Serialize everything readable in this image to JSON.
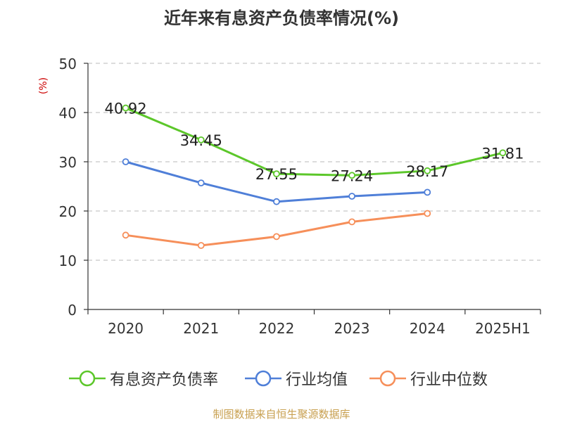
{
  "chart_data": {
    "type": "line",
    "title": "近年来有息资产负债率情况(%)",
    "unit_label": "(%)",
    "ylim": [
      0,
      50
    ],
    "yticks": [
      0,
      10,
      20,
      30,
      40,
      50
    ],
    "grid": true,
    "legend_position": "bottom",
    "categories": [
      "2020",
      "2021",
      "2022",
      "2023",
      "2024",
      "2025H1"
    ],
    "series": [
      {
        "name": "有息资产负债率",
        "color": "#5cc72a",
        "values": [
          40.92,
          34.45,
          27.55,
          27.24,
          28.17,
          31.81
        ],
        "labels": [
          "40.92",
          "34.45",
          "27.55",
          "27.24",
          "28.17",
          "31.81"
        ]
      },
      {
        "name": "行业均值",
        "color": "#4f7fd8",
        "values": [
          30.0,
          25.7,
          21.9,
          23.0,
          23.8,
          null
        ]
      },
      {
        "name": "行业中位数",
        "color": "#f68f5a",
        "values": [
          15.1,
          13.0,
          14.8,
          17.8,
          19.5,
          null
        ]
      }
    ]
  },
  "source_text": "制图数据来自恒生聚源数据库"
}
